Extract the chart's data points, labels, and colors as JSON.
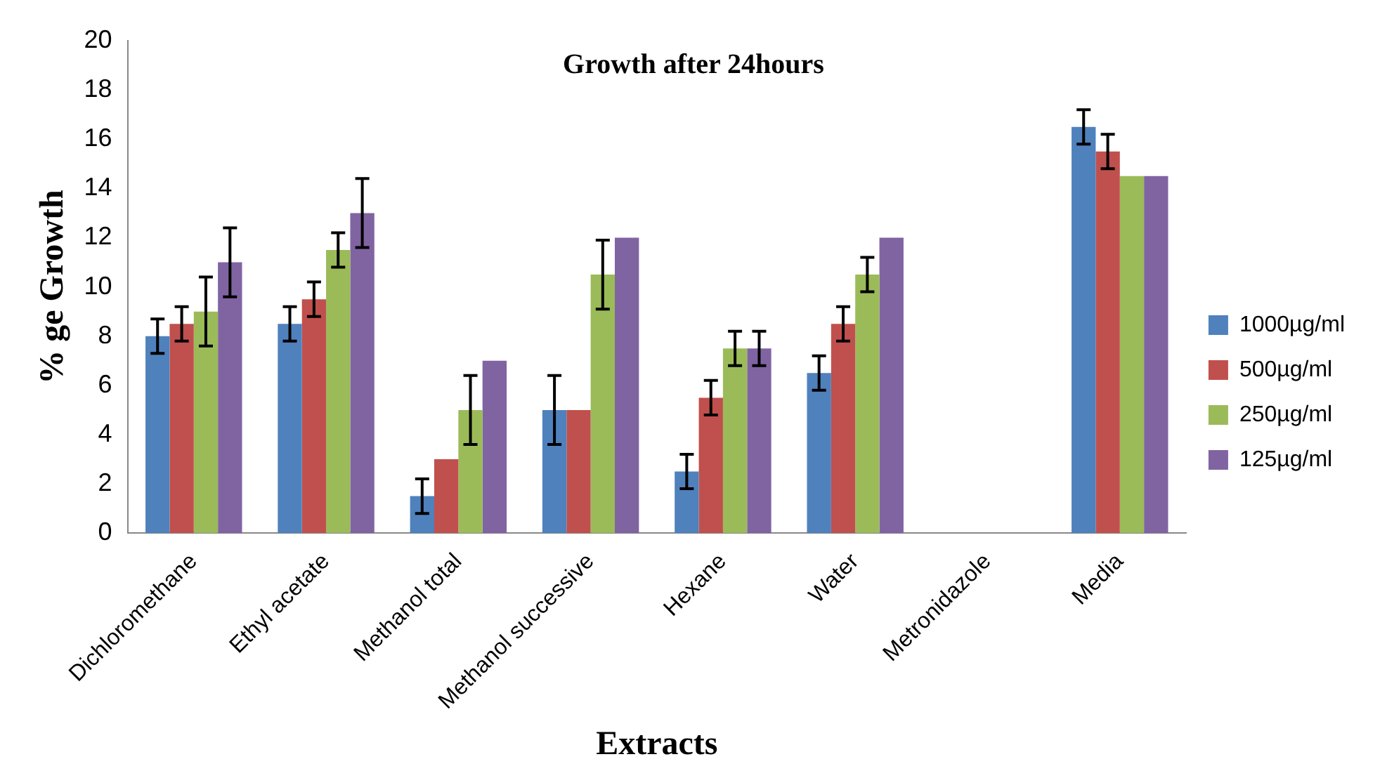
{
  "chart_data": {
    "type": "bar",
    "title": "Growth after 24hours",
    "xlabel": "Extracts",
    "ylabel": "% ge Growth",
    "categories": [
      "Dichloromethane",
      "Ethyl acetate",
      "Methanol total",
      "Methanol successive",
      "Hexane",
      "Water",
      "Metronidazole",
      "Media"
    ],
    "series": [
      {
        "name": "1000µg/ml",
        "color": "#4f81bd",
        "values": [
          8,
          8.5,
          1.5,
          5,
          2.5,
          6.5,
          0,
          16.5
        ],
        "errors": [
          0.7,
          0.7,
          0.7,
          1.4,
          0.7,
          0.7,
          null,
          0.7
        ]
      },
      {
        "name": "500µg/ml",
        "color": "#c0504d",
        "values": [
          8.5,
          9.5,
          3,
          5,
          5.5,
          8.5,
          0,
          15.5
        ],
        "errors": [
          0.7,
          0.7,
          null,
          null,
          0.7,
          0.7,
          null,
          0.7
        ]
      },
      {
        "name": "250µg/ml",
        "color": "#9bbb59",
        "values": [
          9,
          11.5,
          5,
          10.5,
          7.5,
          10.5,
          0,
          14.5
        ],
        "errors": [
          1.4,
          0.7,
          1.4,
          1.4,
          0.7,
          0.7,
          null,
          null
        ]
      },
      {
        "name": "125µg/ml",
        "color": "#8064a2",
        "values": [
          11,
          13,
          7,
          12,
          7.5,
          12,
          0,
          14.5
        ],
        "errors": [
          1.4,
          1.4,
          null,
          null,
          0.7,
          null,
          null,
          null
        ]
      }
    ],
    "ylim": [
      0,
      20
    ],
    "yticks": [
      0,
      2,
      4,
      6,
      8,
      10,
      12,
      14,
      16,
      18,
      20
    ],
    "grid": false,
    "legend": "right"
  }
}
